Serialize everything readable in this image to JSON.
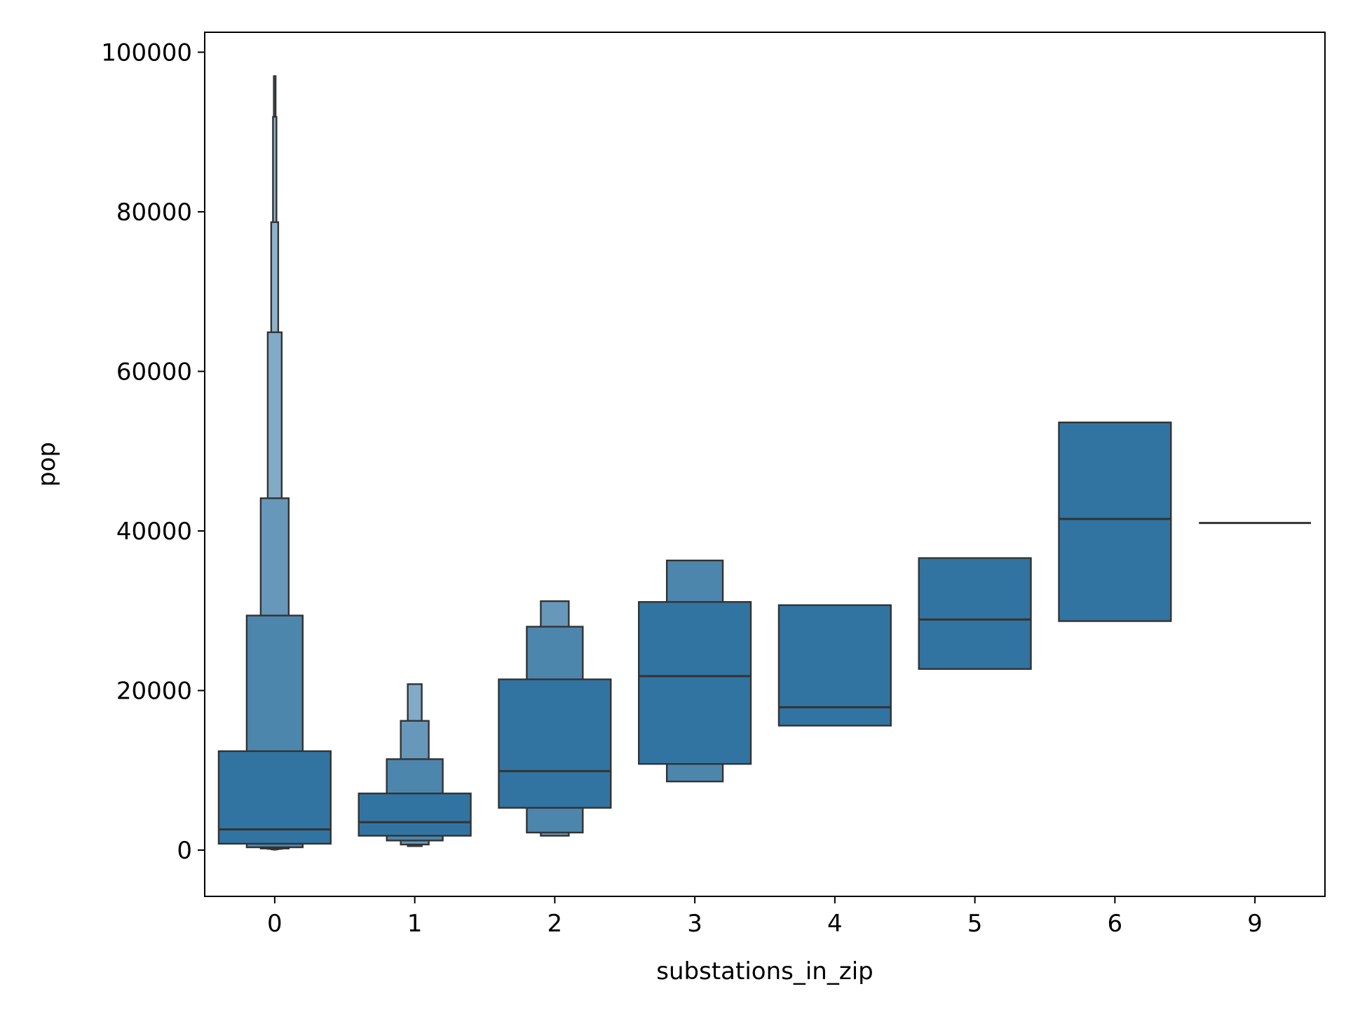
{
  "chart_data": {
    "type": "boxen",
    "title": "",
    "xlabel": "substations_in_zip",
    "ylabel": "pop",
    "categories": [
      "0",
      "1",
      "2",
      "3",
      "4",
      "5",
      "6",
      "9"
    ],
    "ylim": [
      -5800,
      102500
    ],
    "yticks": [
      0,
      20000,
      40000,
      60000,
      80000,
      100000
    ],
    "yticklabels": [
      "0",
      "20000",
      "40000",
      "60000",
      "80000",
      "100000"
    ],
    "grid": false,
    "legend": "none",
    "colors": {
      "base": "#3274a1",
      "edge": "#333333",
      "axis": "#000000",
      "background": "#ffffff"
    },
    "series": [
      {
        "category": "0",
        "median": 2600,
        "levels": [
          {
            "low": 800,
            "high": 12400,
            "width": 0.8
          },
          {
            "low": 350,
            "high": 29400,
            "width": 0.4
          },
          {
            "low": 200,
            "high": 44100,
            "width": 0.2
          },
          {
            "low": 150,
            "high": 64900,
            "width": 0.1
          },
          {
            "low": 100,
            "high": 78700,
            "width": 0.05
          },
          {
            "low": 80,
            "high": 91900,
            "width": 0.025
          },
          {
            "low": 60,
            "high": 97000,
            "width": 0.0125
          }
        ]
      },
      {
        "category": "1",
        "median": 3500,
        "levels": [
          {
            "low": 1800,
            "high": 7100,
            "width": 0.8
          },
          {
            "low": 1200,
            "high": 11400,
            "width": 0.4
          },
          {
            "low": 700,
            "high": 16200,
            "width": 0.2
          },
          {
            "low": 500,
            "high": 20800,
            "width": 0.1
          }
        ]
      },
      {
        "category": "2",
        "median": 9900,
        "levels": [
          {
            "low": 5300,
            "high": 21400,
            "width": 0.8
          },
          {
            "low": 2200,
            "high": 28000,
            "width": 0.4
          },
          {
            "low": 1800,
            "high": 31200,
            "width": 0.2
          }
        ]
      },
      {
        "category": "3",
        "median": 21800,
        "levels": [
          {
            "low": 10800,
            "high": 31100,
            "width": 0.8
          },
          {
            "low": 8600,
            "high": 36300,
            "width": 0.4
          }
        ]
      },
      {
        "category": "4",
        "median": 17900,
        "levels": [
          {
            "low": 15600,
            "high": 30700,
            "width": 0.8
          }
        ]
      },
      {
        "category": "5",
        "median": 28900,
        "levels": [
          {
            "low": 22700,
            "high": 36600,
            "width": 0.8
          }
        ]
      },
      {
        "category": "6",
        "median": 41500,
        "levels": [
          {
            "low": 28700,
            "high": 53600,
            "width": 0.8
          }
        ]
      },
      {
        "category": "9",
        "median": 41000,
        "levels": []
      }
    ]
  }
}
